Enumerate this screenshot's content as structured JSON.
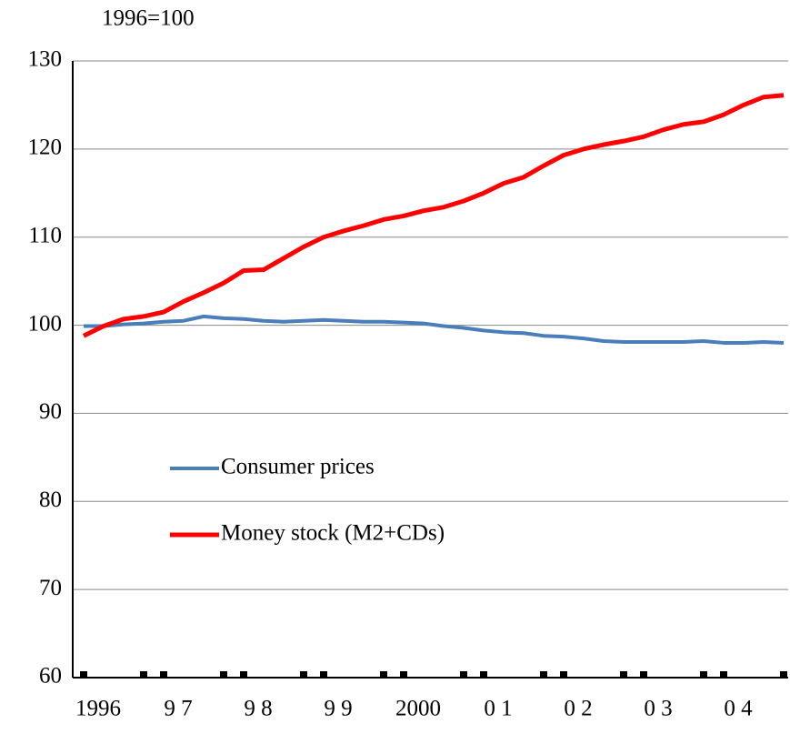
{
  "chart_data": {
    "type": "line",
    "y_unit_label": "1996=100",
    "categories": [
      "1996",
      null,
      null,
      null,
      "9 7",
      null,
      null,
      null,
      "9 8",
      null,
      null,
      null,
      "9 9",
      null,
      null,
      null,
      "2000",
      null,
      null,
      null,
      "0 1",
      null,
      null,
      null,
      "0 2",
      null,
      null,
      null,
      "0 3",
      null,
      null,
      null,
      "0 4",
      null,
      null,
      null
    ],
    "series": [
      {
        "name": "Consumer prices",
        "color": "#4a7ebb",
        "values": [
          99.9,
          99.9,
          100.1,
          100.2,
          100.4,
          100.5,
          101.0,
          100.8,
          100.7,
          100.5,
          100.4,
          100.5,
          100.6,
          100.5,
          100.4,
          100.4,
          100.3,
          100.2,
          99.9,
          99.7,
          99.4,
          99.2,
          99.1,
          98.8,
          98.7,
          98.5,
          98.2,
          98.1,
          98.1,
          98.1,
          98.1,
          98.2,
          98.0,
          98.0,
          98.1,
          98.0
        ]
      },
      {
        "name": "Money stock (M2+CDs)",
        "color": "#ff0000",
        "values": [
          98.8,
          99.9,
          100.7,
          101.0,
          101.5,
          102.7,
          103.7,
          104.8,
          106.2,
          106.3,
          107.6,
          108.9,
          110.0,
          110.7,
          111.3,
          112.0,
          112.4,
          113.0,
          113.4,
          114.1,
          115.0,
          116.1,
          116.8,
          118.1,
          119.3,
          120.0,
          120.5,
          120.9,
          121.4,
          122.2,
          122.8,
          123.1,
          123.9,
          125.0,
          125.9,
          126.1
        ]
      }
    ],
    "ylim": [
      60,
      130
    ],
    "yticks": [
      60,
      70,
      80,
      90,
      100,
      110,
      120,
      130
    ],
    "grid": true
  }
}
